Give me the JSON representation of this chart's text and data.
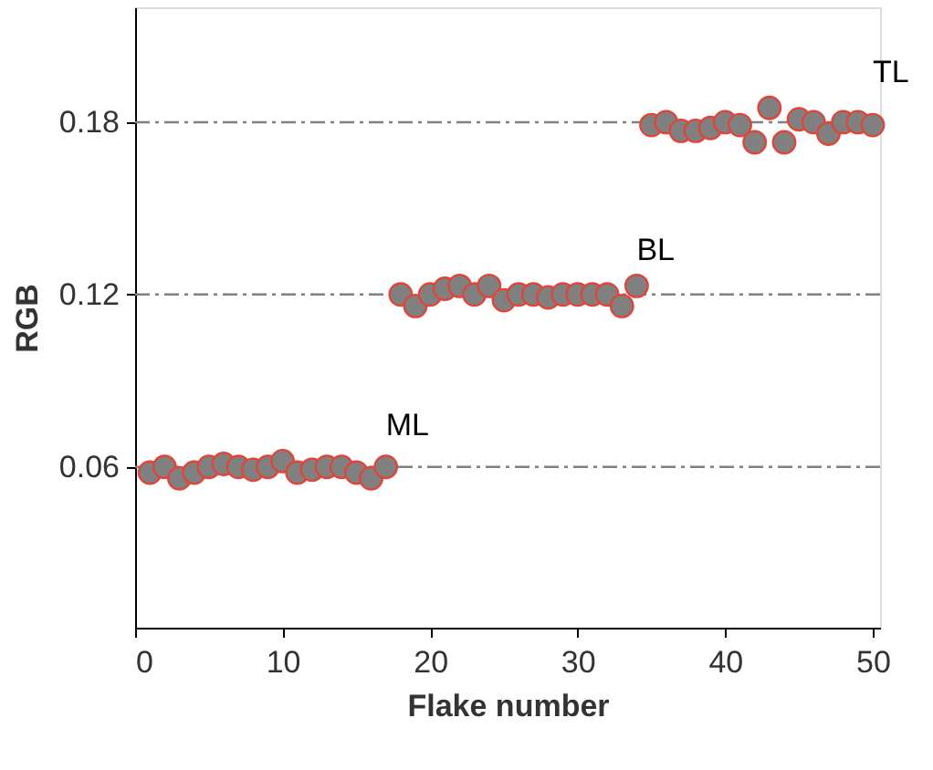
{
  "chart_data": {
    "type": "scatter",
    "xlabel": "Flake number",
    "ylabel": "RGB",
    "xlim": [
      0,
      50.5
    ],
    "xticks": [
      0,
      10,
      20,
      30,
      40,
      50
    ],
    "ylim": [
      0.004,
      0.22
    ],
    "yticks": [
      0.06,
      0.12,
      0.18
    ],
    "marker": "circle",
    "ref_lines": [
      {
        "axis": "y",
        "value": 0.06,
        "color": "#808080",
        "line_style": "dashed"
      },
      {
        "axis": "y",
        "value": 0.12,
        "color": "#808080",
        "line_style": "dashed"
      },
      {
        "axis": "y",
        "value": 0.18,
        "color": "#808080",
        "line_style": "dashed"
      }
    ],
    "series": [
      {
        "name": "ML",
        "color": "#808080",
        "x": [
          1,
          2,
          3,
          4,
          5,
          6,
          7,
          8,
          9,
          10,
          11,
          12,
          13,
          14,
          15,
          16,
          17
        ],
        "values": [
          0.058,
          0.06,
          0.056,
          0.058,
          0.06,
          0.061,
          0.06,
          0.059,
          0.06,
          0.062,
          0.058,
          0.059,
          0.06,
          0.06,
          0.058,
          0.056,
          0.06
        ]
      },
      {
        "name": "BL",
        "color": "#808080",
        "x": [
          18,
          19,
          20,
          21,
          22,
          23,
          24,
          25,
          26,
          27,
          28,
          29,
          30,
          31,
          32,
          33,
          34
        ],
        "values": [
          0.12,
          0.116,
          0.12,
          0.122,
          0.123,
          0.12,
          0.123,
          0.118,
          0.12,
          0.12,
          0.119,
          0.12,
          0.12,
          0.12,
          0.12,
          0.116,
          0.123
        ]
      },
      {
        "name": "TL",
        "color": "#808080",
        "x": [
          35,
          36,
          37,
          38,
          39,
          40,
          41,
          42,
          43,
          44,
          45,
          46,
          47,
          48,
          49,
          50
        ],
        "values": [
          0.179,
          0.18,
          0.177,
          0.177,
          0.178,
          0.18,
          0.179,
          0.173,
          0.185,
          0.173,
          0.181,
          0.18,
          0.176,
          0.18,
          0.18,
          0.179
        ]
      }
    ]
  }
}
